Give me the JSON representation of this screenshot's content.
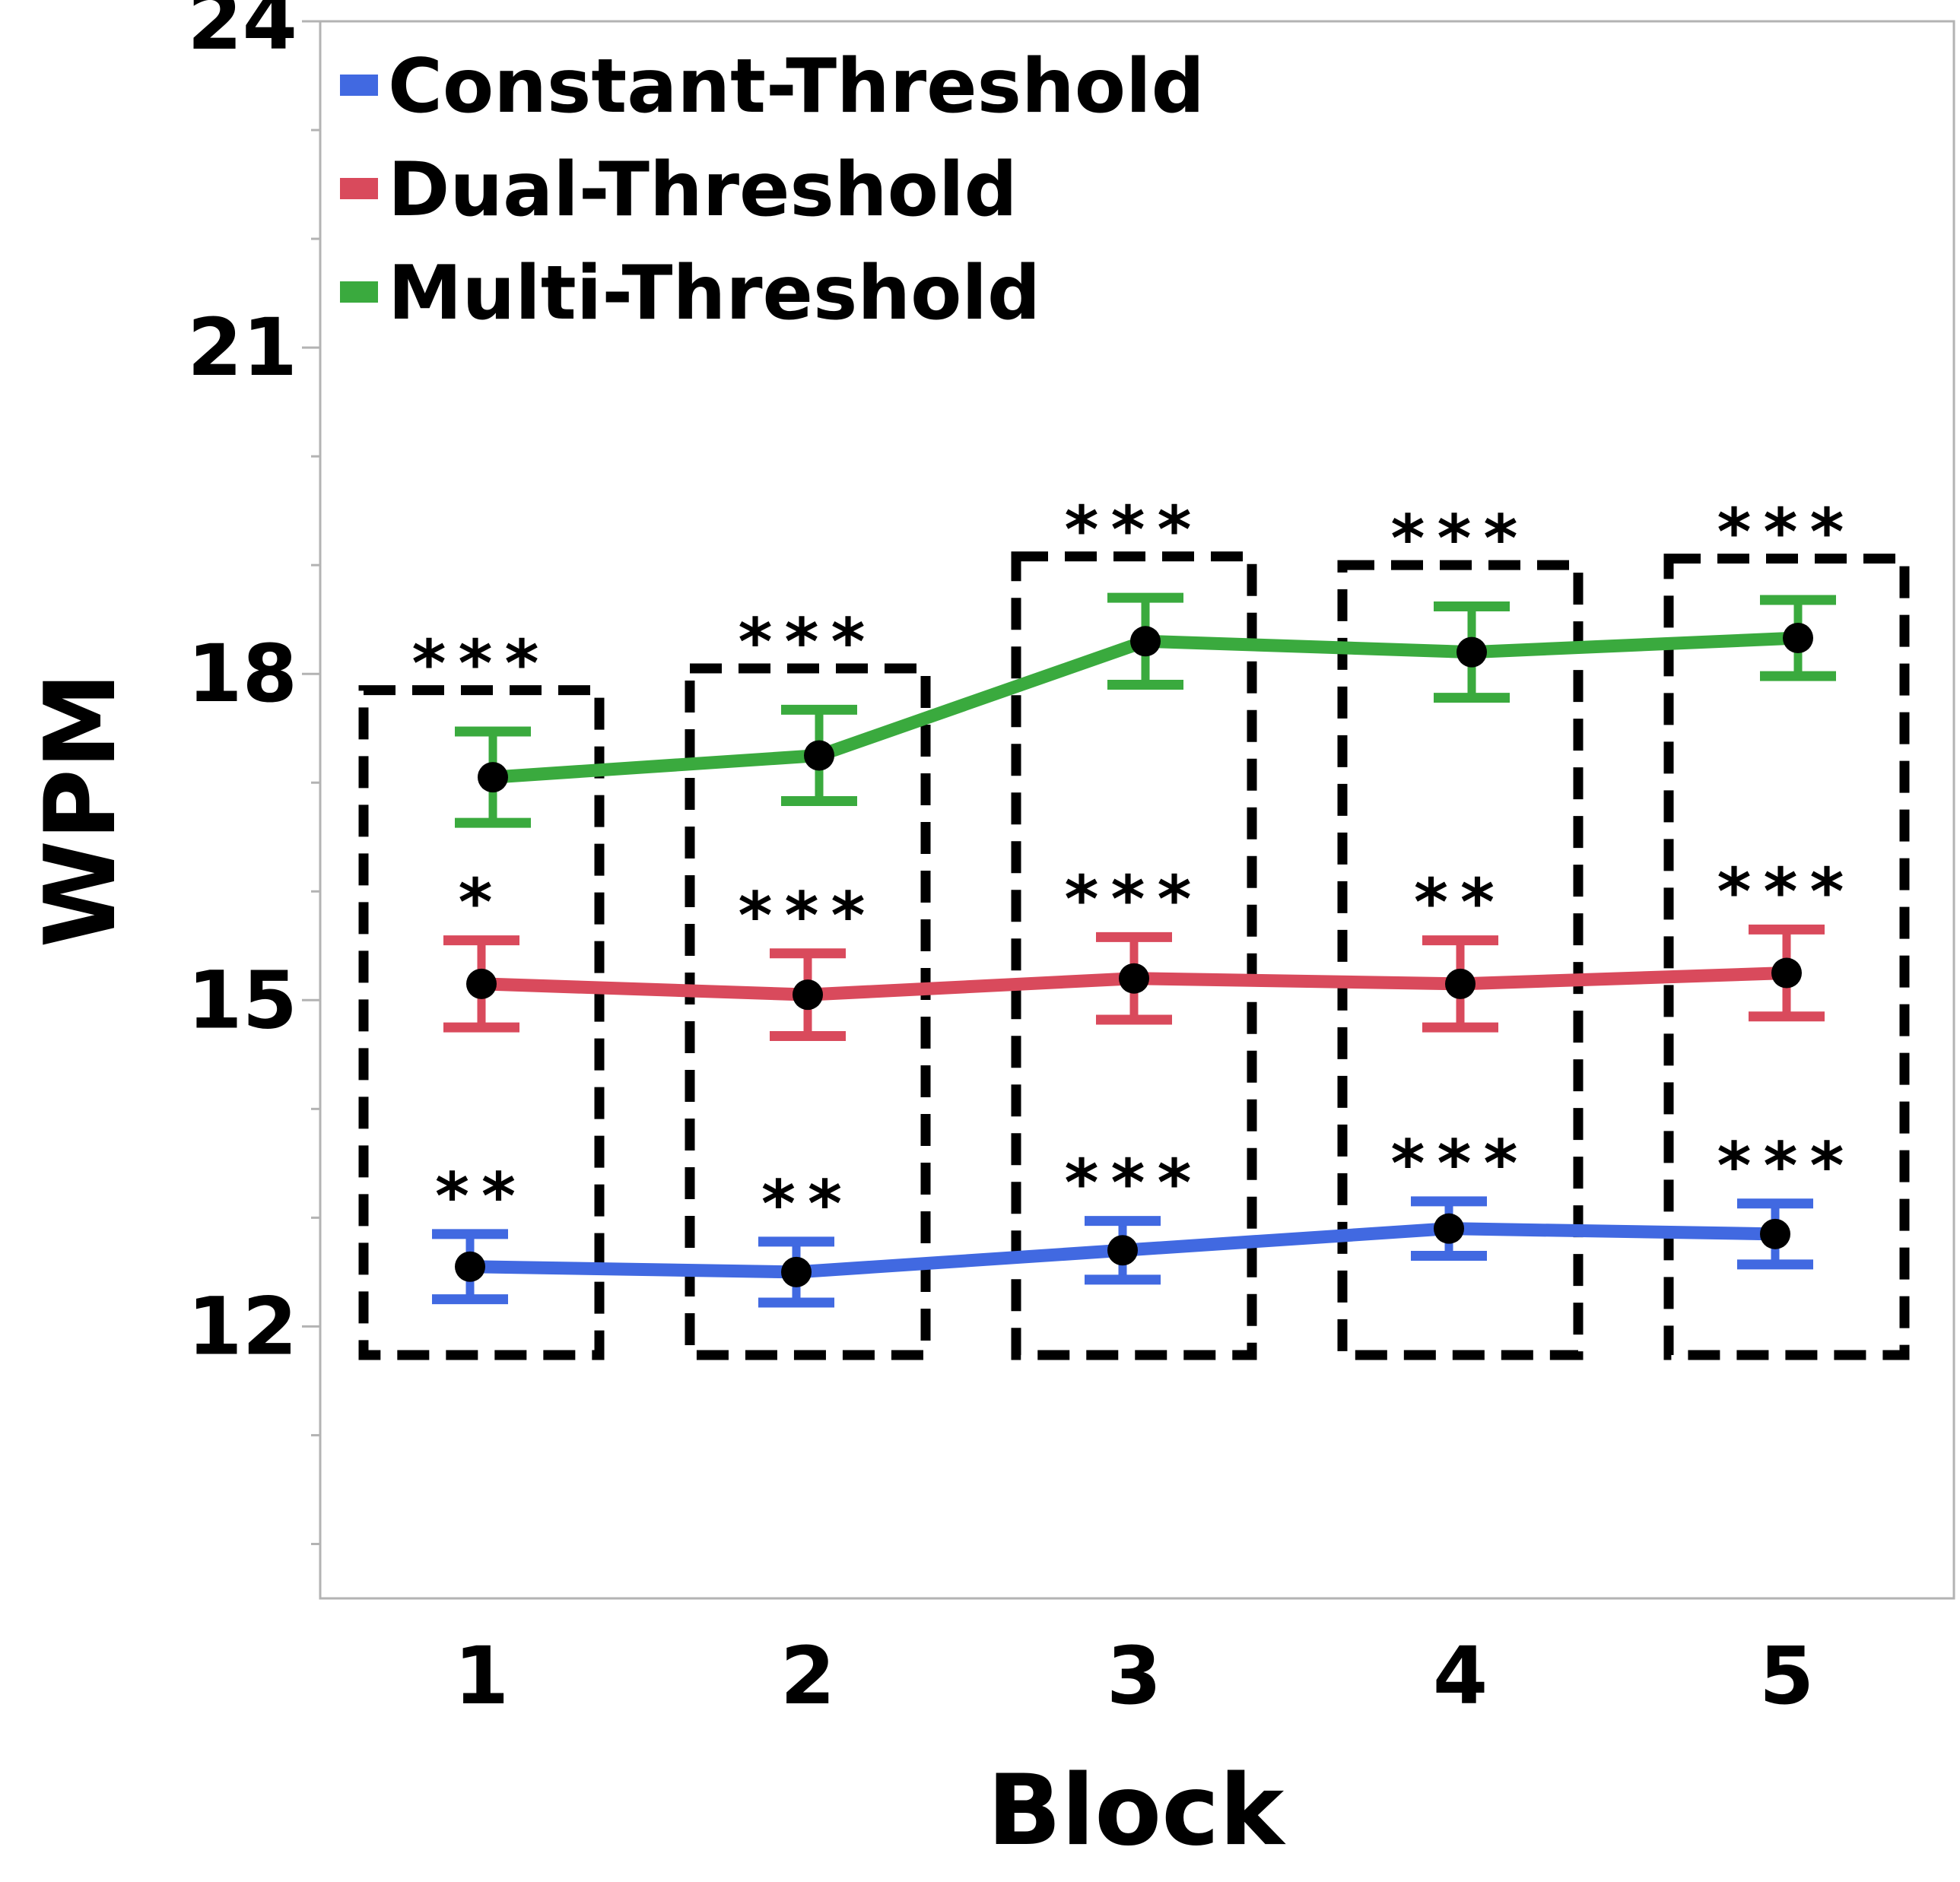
{
  "chart_data": {
    "type": "line",
    "xlabel": "Block",
    "ylabel": "WPM",
    "categories": [
      "1",
      "2",
      "3",
      "4",
      "5"
    ],
    "ylim": [
      9.5,
      24
    ],
    "yticks": [
      "12",
      "15",
      "18",
      "21",
      "24"
    ],
    "grid": false,
    "legend_position": "top-left",
    "series": [
      {
        "name": "Constant-Threshold",
        "color": "#4169e1",
        "values": [
          12.55,
          12.5,
          12.7,
          12.9,
          12.85
        ],
        "error": [
          0.3,
          0.28,
          0.27,
          0.25,
          0.28
        ],
        "significance": [
          "**",
          "**",
          "***",
          "***",
          "***"
        ]
      },
      {
        "name": "Dual-Threshold",
        "color": "#d94a5c",
        "values": [
          15.15,
          15.05,
          15.2,
          15.15,
          15.25
        ],
        "error": [
          0.4,
          0.38,
          0.38,
          0.4,
          0.4
        ],
        "significance": [
          "*",
          "***",
          "***",
          "**",
          "***"
        ]
      },
      {
        "name": "Multi-Threshold",
        "color": "#3aaa3e",
        "values": [
          17.05,
          17.25,
          18.3,
          18.2,
          18.33
        ],
        "error": [
          0.42,
          0.42,
          0.4,
          0.42,
          0.35
        ],
        "significance": [
          "***",
          "***",
          "***",
          "***",
          "***"
        ]
      }
    ]
  }
}
